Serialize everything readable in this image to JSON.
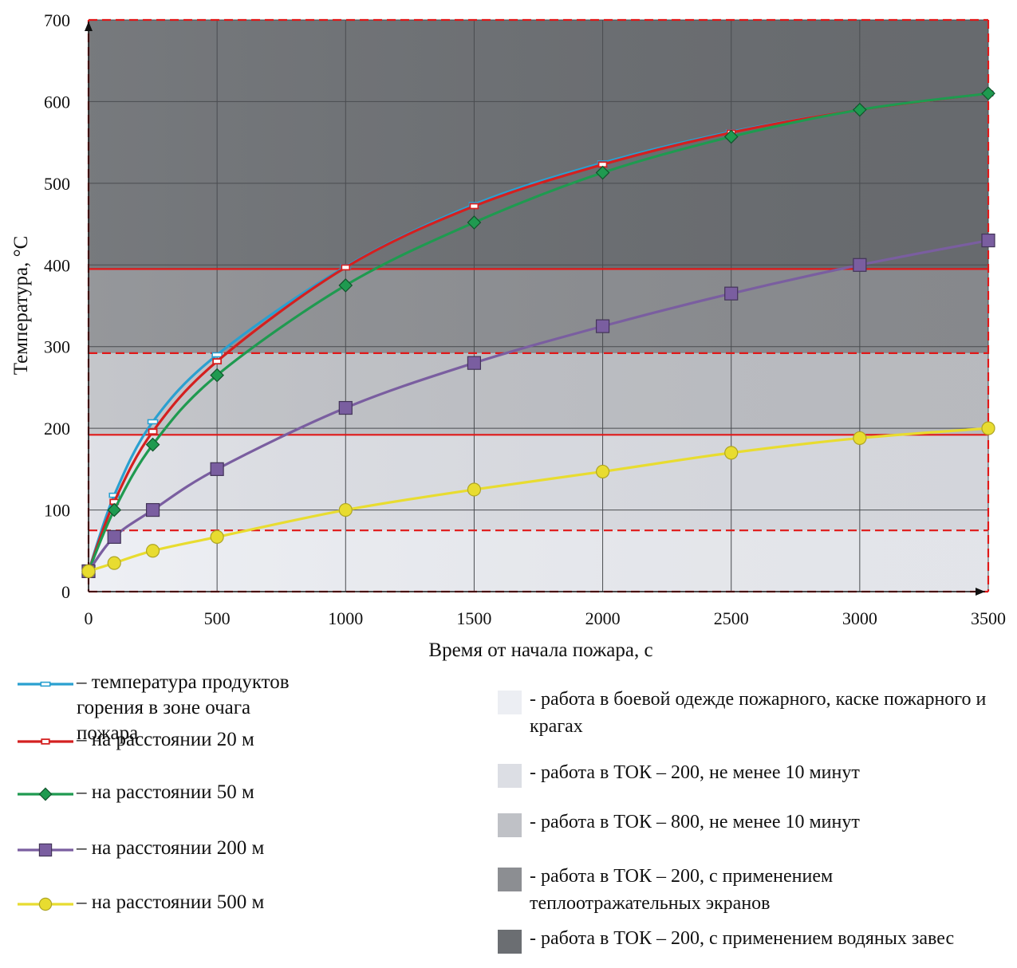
{
  "chart_data": {
    "type": "line",
    "xlabel": "Время от начала пожара, с",
    "ylabel": "Температура, °С",
    "xlim": [
      0,
      3500
    ],
    "ylim": [
      0,
      700
    ],
    "x_ticks": [
      0,
      500,
      1000,
      1500,
      2000,
      2500,
      3000,
      3500
    ],
    "y_ticks": [
      0,
      100,
      200,
      300,
      400,
      500,
      600,
      700
    ],
    "grid": true,
    "series": [
      {
        "name": "– температура продуктов горения в зоне очага пожара",
        "color": "#2aa0d0",
        "marker": "dash",
        "x": [
          0,
          100,
          250,
          500,
          1000,
          1500,
          2000,
          2500,
          3000,
          3500
        ],
        "y": [
          25,
          118,
          208,
          290,
          398,
          474,
          525,
          563,
          590,
          610
        ]
      },
      {
        "name": "– на расстоянии 20 м",
        "color": "#d42020",
        "marker": "square-small",
        "x": [
          0,
          100,
          250,
          500,
          1000,
          1500,
          2000,
          2500,
          3000,
          3500
        ],
        "y": [
          25,
          110,
          196,
          282,
          397,
          472,
          523,
          562,
          590,
          610
        ]
      },
      {
        "name": "– на расстоянии 50 м",
        "color": "#1f9a50",
        "marker": "diamond",
        "x": [
          0,
          100,
          250,
          500,
          1000,
          1500,
          2000,
          2500,
          3000,
          3500
        ],
        "y": [
          25,
          100,
          180,
          265,
          375,
          452,
          513,
          557,
          590,
          610
        ]
      },
      {
        "name": "– на расстоянии 200 м",
        "color": "#7a5ea0",
        "marker": "square",
        "x": [
          0,
          100,
          250,
          500,
          1000,
          1500,
          2000,
          2500,
          3000,
          3500
        ],
        "y": [
          25,
          67,
          100,
          150,
          225,
          280,
          325,
          365,
          400,
          430
        ]
      },
      {
        "name": "– на расстоянии 500 м",
        "color": "#e8dc30",
        "marker": "circle",
        "x": [
          0,
          100,
          250,
          500,
          1000,
          1500,
          2000,
          2500,
          3000,
          3500
        ],
        "y": [
          25,
          35,
          50,
          67,
          100,
          125,
          147,
          170,
          188,
          200
        ]
      }
    ],
    "zones": [
      {
        "label": "- работа в боевой одежде пожарного, каске пожарного и крагах",
        "from": 0,
        "to": 75,
        "color": "#eceef3"
      },
      {
        "label": "- работа в ТОК – 200, не менее 10 минут",
        "from": 75,
        "to": 192,
        "color": "#dcdee4"
      },
      {
        "label": "- работа в ТОК – 800, не менее 10 минут",
        "from": 192,
        "to": 292,
        "color": "#bfc1c6"
      },
      {
        "label": "- работа в ТОК – 200, с применением теплоотражательных экранов",
        "from": 292,
        "to": 395,
        "color": "#8c8e92"
      },
      {
        "label": "- работа в ТОК – 200, с применением водяных завес",
        "from": 395,
        "to": 700,
        "color": "#6b6e72"
      }
    ],
    "boundary_lines": [
      {
        "y": 75,
        "style": "dashed"
      },
      {
        "y": 192,
        "style": "solid"
      },
      {
        "y": 292,
        "style": "dashed"
      },
      {
        "y": 395,
        "style": "solid"
      },
      {
        "y": 700,
        "style": "dashed"
      }
    ]
  }
}
